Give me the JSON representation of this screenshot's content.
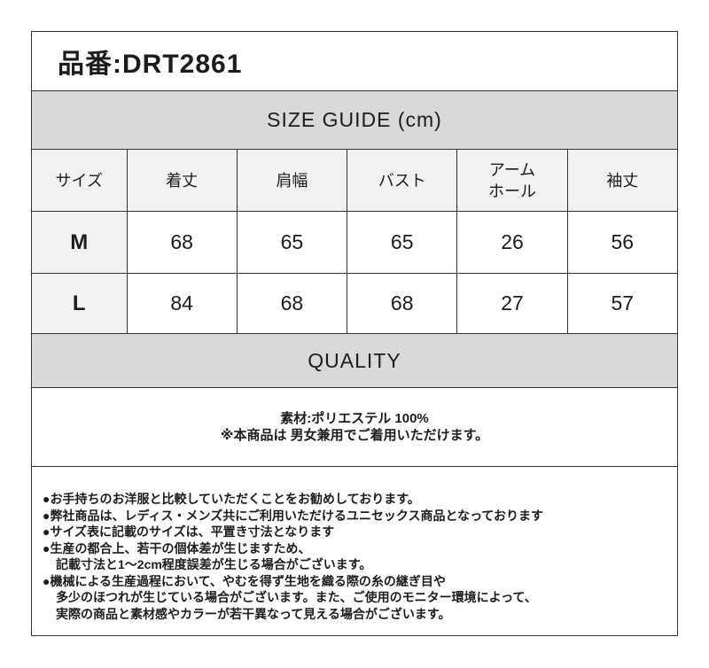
{
  "product_header": {
    "text": "品番:DRT2861"
  },
  "size_guide": {
    "title": "SIZE GUIDE (cm)",
    "table": {
      "headers": [
        "サイズ",
        "着丈",
        "肩幅",
        "バスト",
        "アーム\nホール",
        "袖丈"
      ],
      "rows": [
        {
          "size": "M",
          "measurements": [
            "68",
            "65",
            "65",
            "26",
            "56"
          ]
        },
        {
          "size": "L",
          "measurements": [
            "84",
            "68",
            "68",
            "27",
            "57"
          ]
        }
      ]
    }
  },
  "quality": {
    "title": "QUALITY",
    "material_line": "素材:ポリエステル 100%",
    "unisex_line": "※本商品は 男女兼用でご着用いただけます。"
  },
  "notes": {
    "lines": [
      "●お手持ちのお洋服と比較していただくことをお勧めしております。",
      "●弊社商品は、レディス・メンズ共にご利用いただけるユニセックス商品となっております",
      "●サイズ表に記載のサイズは、平置き寸法となります",
      "●生産の都合上、若干の個体差が生じますため、",
      "記載寸法と1～2cm程度誤差が生じる場合がございます。",
      "●機械による生産過程において、やむを得ず生地を織る際の糸の継ぎ目や",
      "多少のほつれが生じている場合がございます。また、ご使用のモニター環境によって、",
      "実際の商品と素材感やカラーが若干異なって見える場合がございます。"
    ]
  },
  "colors": {
    "band_gray": "#d9d9d9",
    "cell_gray": "#f2f2f2",
    "border": "#333333",
    "text": "#1c1c1c"
  }
}
